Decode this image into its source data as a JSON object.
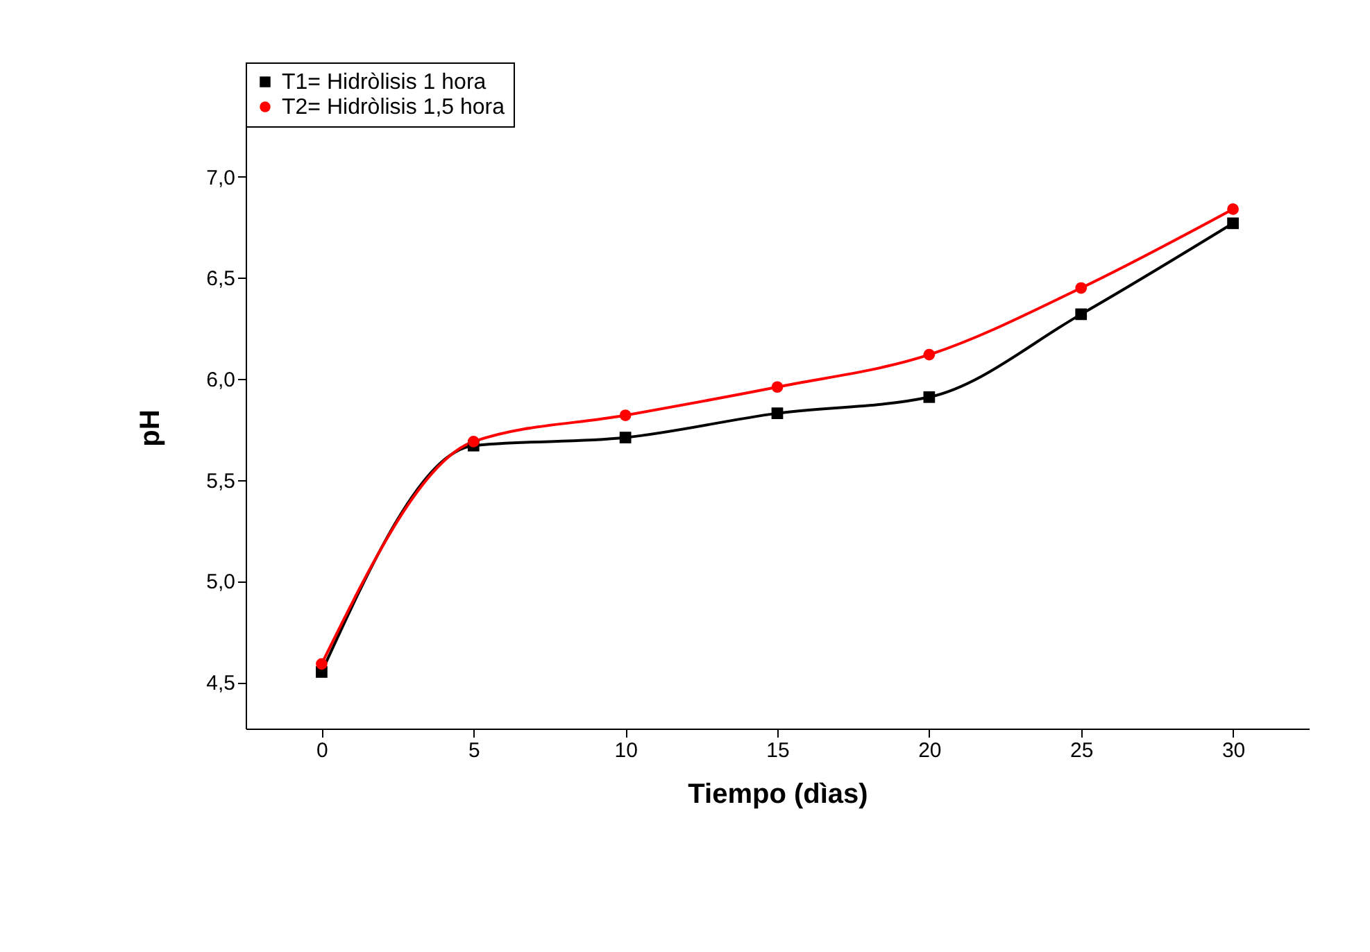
{
  "chart_data": {
    "type": "line",
    "xlabel": "Tiempo (dìas)",
    "ylabel": "pH",
    "x": [
      0,
      5,
      10,
      15,
      20,
      25,
      30
    ],
    "series": [
      {
        "name": "T1= Hidròlisis 1 hora",
        "color": "#000000",
        "marker": "square",
        "values": [
          4.55,
          5.67,
          5.71,
          5.83,
          5.91,
          6.32,
          6.77
        ]
      },
      {
        "name": "T2= Hidròlisis 1,5 hora",
        "color": "#ff0000",
        "marker": "circle",
        "values": [
          4.59,
          5.69,
          5.82,
          5.96,
          6.12,
          6.45,
          6.84
        ]
      }
    ],
    "xlim": [
      -2.5,
      32.5
    ],
    "xticks": [
      0,
      5,
      10,
      15,
      20,
      25,
      30
    ],
    "ylim": [
      4.27,
      7.25
    ],
    "yticks": [
      {
        "value": 4.5,
        "label": "4,5"
      },
      {
        "value": 5,
        "label": "5,0"
      },
      {
        "value": 5.5,
        "label": "5,5"
      },
      {
        "value": 6,
        "label": "6,0"
      },
      {
        "value": 6.5,
        "label": "6,5"
      },
      {
        "value": 7,
        "label": "7,0"
      }
    ],
    "grid": false,
    "legend": "top",
    "line_style": "solid"
  }
}
